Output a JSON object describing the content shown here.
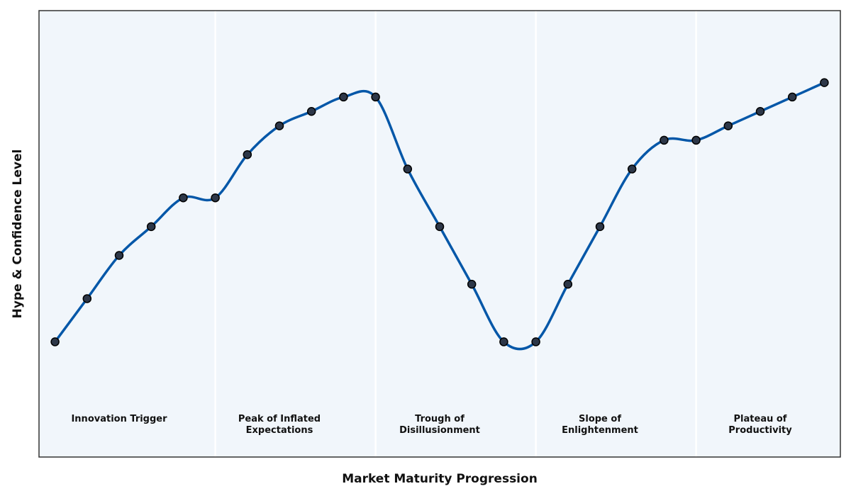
{
  "chart_data": {
    "type": "line",
    "xlabel": "Market Maturity Progression",
    "ylabel": "Hype & Confidence Level",
    "x": [
      0,
      1,
      2,
      3,
      4,
      5,
      6,
      7,
      8,
      9,
      10,
      11,
      12,
      13,
      14,
      15,
      16,
      17,
      18,
      19,
      20,
      21,
      22,
      23,
      24
    ],
    "series": [
      {
        "color": "#0457a8",
        "marker_color": "#2d3748",
        "values": [
          2,
          3.5,
          5,
          6,
          7,
          7,
          8.5,
          9.5,
          10,
          10.5,
          10.5,
          8,
          6,
          4,
          2,
          2,
          4,
          6,
          8,
          9,
          9,
          9.5,
          10,
          10.5,
          11
        ]
      }
    ],
    "xlim": [
      -0.5,
      24.5
    ],
    "ylim": [
      -2,
      13.5
    ],
    "background": "#f1f6fb",
    "dividers": [
      5,
      10,
      15,
      20
    ],
    "phases": [
      {
        "lines": [
          "Innovation Trigger"
        ],
        "center": 2
      },
      {
        "lines": [
          "Peak of Inflated",
          "Expectations"
        ],
        "center": 7
      },
      {
        "lines": [
          "Trough of",
          "Disillusionment"
        ],
        "center": 12
      },
      {
        "lines": [
          "Slope of",
          "Enlightenment"
        ],
        "center": 17
      },
      {
        "lines": [
          "Plateau of",
          "Productivity"
        ],
        "center": 22
      }
    ]
  }
}
